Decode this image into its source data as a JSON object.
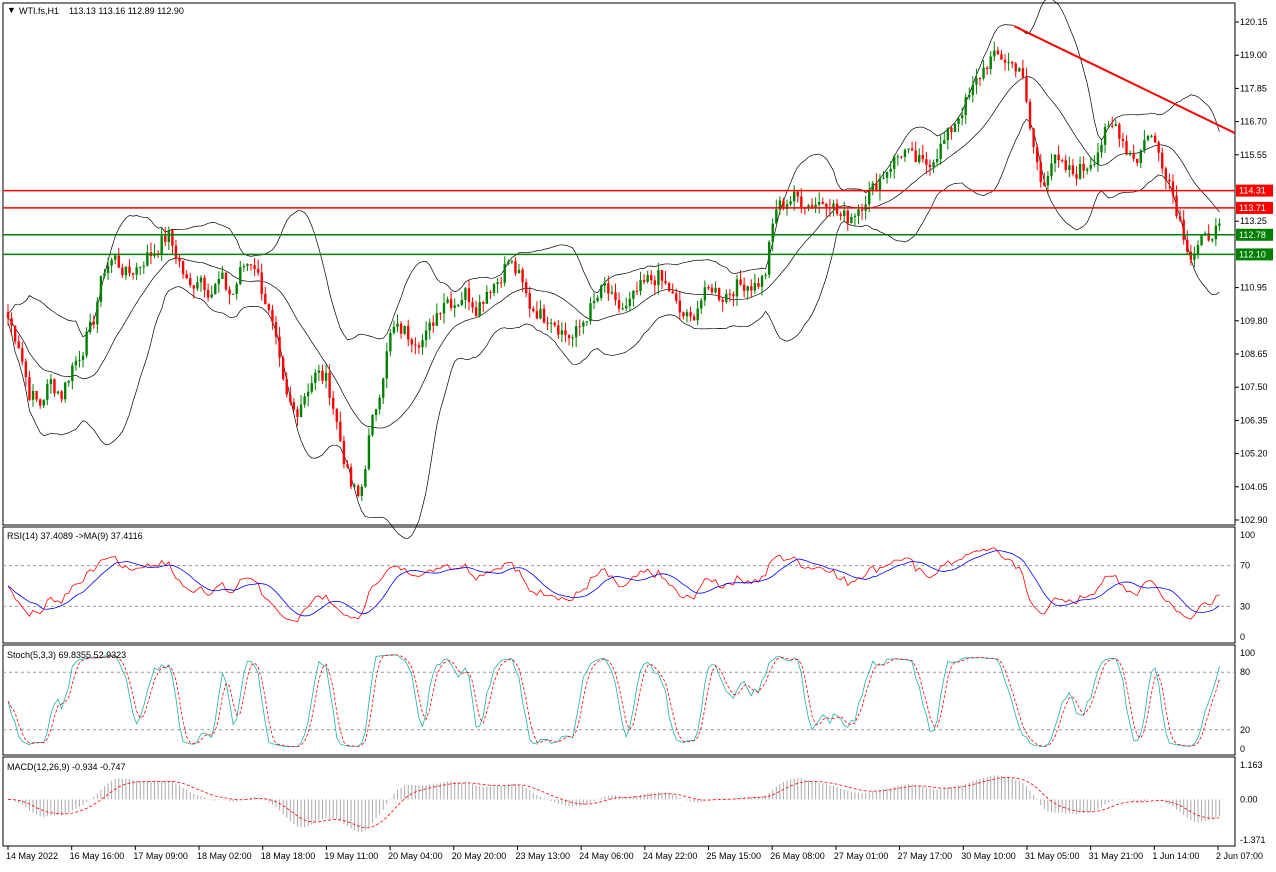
{
  "header": {
    "title": "WTI.fs,H1",
    "ohlc": "113.13 113.16 112.89 112.90"
  },
  "colors": {
    "up": "#008000",
    "down": "#ff0000",
    "hline_red": "#ff0000",
    "hline_green": "#008000",
    "rsi": "#ff0000",
    "rsi_ma": "#0000ff",
    "stoch_main": "#20b2aa",
    "stoch_signal": "#ff0000",
    "macd_hist": "#a9a9a9",
    "macd_signal": "#ff0000",
    "band": "#000000"
  },
  "indicators": {
    "rsi_label": "RSI(14) 37.4089  ->MA(9) 37.4116",
    "stoch_label": "Stoch(5,3,3) 69.8355 52.9323",
    "macd_label": "MACD(12,26,9) -0.934 -0.747"
  },
  "chart_data": [
    {
      "type": "candlestick",
      "title": "WTI.fs,H1",
      "ylim": [
        102.9,
        120.15
      ],
      "y_ticks": [
        "120.15",
        "119.00",
        "117.85",
        "116.70",
        "115.55",
        "114.31",
        "113.71",
        "113.25",
        "112.78",
        "112.10",
        "110.95",
        "109.80",
        "108.65",
        "107.50",
        "106.35",
        "105.20",
        "104.05",
        "102.90"
      ],
      "hlines": [
        {
          "value": 114.31,
          "label": "114.31",
          "color": "#ff0000"
        },
        {
          "value": 113.71,
          "label": "113.71",
          "color": "#ff0000"
        },
        {
          "value": 112.78,
          "label": "112.78",
          "color": "#008000"
        },
        {
          "value": 112.1,
          "label": "112.10",
          "color": "#008000"
        }
      ],
      "trendline": {
        "from": [
          "31 May 05:00",
          120.0
        ],
        "to": [
          "2 Jun 07:00",
          116.3
        ]
      },
      "x_labels": [
        "14 May 2022",
        "16 May 16:00",
        "17 May 09:00",
        "18 May 02:00",
        "18 May 18:00",
        "19 May 11:00",
        "20 May 04:00",
        "20 May 20:00",
        "23 May 13:00",
        "24 May 06:00",
        "24 May 22:00",
        "25 May 15:00",
        "26 May 08:00",
        "27 May 01:00",
        "27 May 17:00",
        "30 May 10:00",
        "31 May 05:00",
        "31 May 21:00",
        "1 Jun 14:00",
        "2 Jun 07:00"
      ],
      "price_path": [
        [
          0,
          109.9
        ],
        [
          6,
          109.0
        ],
        [
          12,
          107.3
        ],
        [
          18,
          106.9
        ],
        [
          24,
          107.7
        ],
        [
          30,
          107.2
        ],
        [
          36,
          108.2
        ],
        [
          42,
          108.8
        ],
        [
          48,
          109.8
        ],
        [
          54,
          111.6
        ],
        [
          60,
          112.0
        ],
        [
          66,
          111.4
        ],
        [
          72,
          111.6
        ],
        [
          78,
          112.0
        ],
        [
          84,
          112.3
        ],
        [
          90,
          112.8
        ],
        [
          96,
          111.9
        ],
        [
          102,
          110.9
        ],
        [
          108,
          111.4
        ],
        [
          114,
          110.7
        ],
        [
          120,
          111.3
        ],
        [
          126,
          110.6
        ],
        [
          132,
          111.7
        ],
        [
          138,
          111.9
        ],
        [
          144,
          110.7
        ],
        [
          150,
          109.3
        ],
        [
          156,
          107.2
        ],
        [
          162,
          106.6
        ],
        [
          168,
          107.4
        ],
        [
          174,
          108.0
        ],
        [
          180,
          107.7
        ],
        [
          186,
          106.0
        ],
        [
          192,
          104.2
        ],
        [
          198,
          103.6
        ],
        [
          204,
          106.0
        ],
        [
          210,
          107.6
        ],
        [
          216,
          109.5
        ],
        [
          222,
          109.5
        ],
        [
          228,
          109.2
        ],
        [
          234,
          109.1
        ],
        [
          240,
          109.9
        ],
        [
          246,
          110.6
        ],
        [
          252,
          110.4
        ],
        [
          258,
          110.8
        ],
        [
          264,
          110.2
        ],
        [
          270,
          110.9
        ],
        [
          276,
          111.2
        ],
        [
          282,
          111.9
        ],
        [
          288,
          111.3
        ],
        [
          294,
          110.3
        ],
        [
          300,
          110.0
        ],
        [
          306,
          109.9
        ],
        [
          312,
          109.4
        ],
        [
          318,
          109.2
        ],
        [
          324,
          109.8
        ],
        [
          330,
          110.4
        ],
        [
          336,
          111.0
        ],
        [
          342,
          110.3
        ],
        [
          348,
          110.2
        ],
        [
          354,
          110.8
        ],
        [
          360,
          111.2
        ],
        [
          366,
          111.3
        ],
        [
          372,
          110.9
        ],
        [
          378,
          110.1
        ],
        [
          384,
          109.8
        ],
        [
          390,
          110.5
        ],
        [
          396,
          111.0
        ],
        [
          402,
          110.6
        ],
        [
          408,
          110.9
        ],
        [
          414,
          111.1
        ],
        [
          420,
          111.0
        ],
        [
          426,
          111.3
        ],
        [
          432,
          113.7
        ],
        [
          438,
          113.9
        ],
        [
          444,
          114.1
        ],
        [
          450,
          113.8
        ],
        [
          456,
          113.9
        ],
        [
          462,
          114.0
        ],
        [
          468,
          113.4
        ],
        [
          474,
          113.4
        ],
        [
          480,
          113.8
        ],
        [
          486,
          114.3
        ],
        [
          492,
          114.8
        ],
        [
          498,
          115.3
        ],
        [
          504,
          115.7
        ],
        [
          510,
          115.4
        ],
        [
          516,
          115.2
        ],
        [
          522,
          115.5
        ],
        [
          528,
          116.1
        ],
        [
          534,
          116.8
        ],
        [
          540,
          117.4
        ],
        [
          546,
          118.2
        ],
        [
          552,
          118.8
        ],
        [
          558,
          119.0
        ],
        [
          564,
          118.7
        ],
        [
          570,
          118.6
        ],
        [
          576,
          116.2
        ],
        [
          582,
          114.5
        ],
        [
          588,
          115.4
        ],
        [
          594,
          115.1
        ],
        [
          600,
          114.9
        ],
        [
          606,
          115.1
        ],
        [
          612,
          115.5
        ],
        [
          618,
          116.3
        ],
        [
          624,
          116.6
        ],
        [
          630,
          115.7
        ],
        [
          636,
          115.4
        ],
        [
          642,
          116.4
        ],
        [
          648,
          115.6
        ],
        [
          654,
          114.6
        ],
        [
          660,
          113.2
        ],
        [
          666,
          112.0
        ],
        [
          672,
          112.5
        ],
        [
          678,
          112.9
        ],
        [
          682,
          112.9
        ]
      ]
    },
    {
      "type": "line",
      "title": "RSI(14)",
      "ylim": [
        0,
        100
      ],
      "y_ticks": [
        "100",
        "70",
        "30",
        "0"
      ],
      "levels": [
        70,
        30
      ]
    },
    {
      "type": "line",
      "title": "Stoch(5,3,3)",
      "ylim": [
        0,
        100
      ],
      "y_ticks": [
        "100",
        "80",
        "20",
        "0"
      ],
      "levels": [
        80,
        20
      ]
    },
    {
      "type": "bar",
      "title": "MACD(12,26,9)",
      "ylim": [
        -1.371,
        1.163
      ],
      "y_ticks": [
        "1.163",
        "0.00",
        "-1.371"
      ]
    }
  ]
}
